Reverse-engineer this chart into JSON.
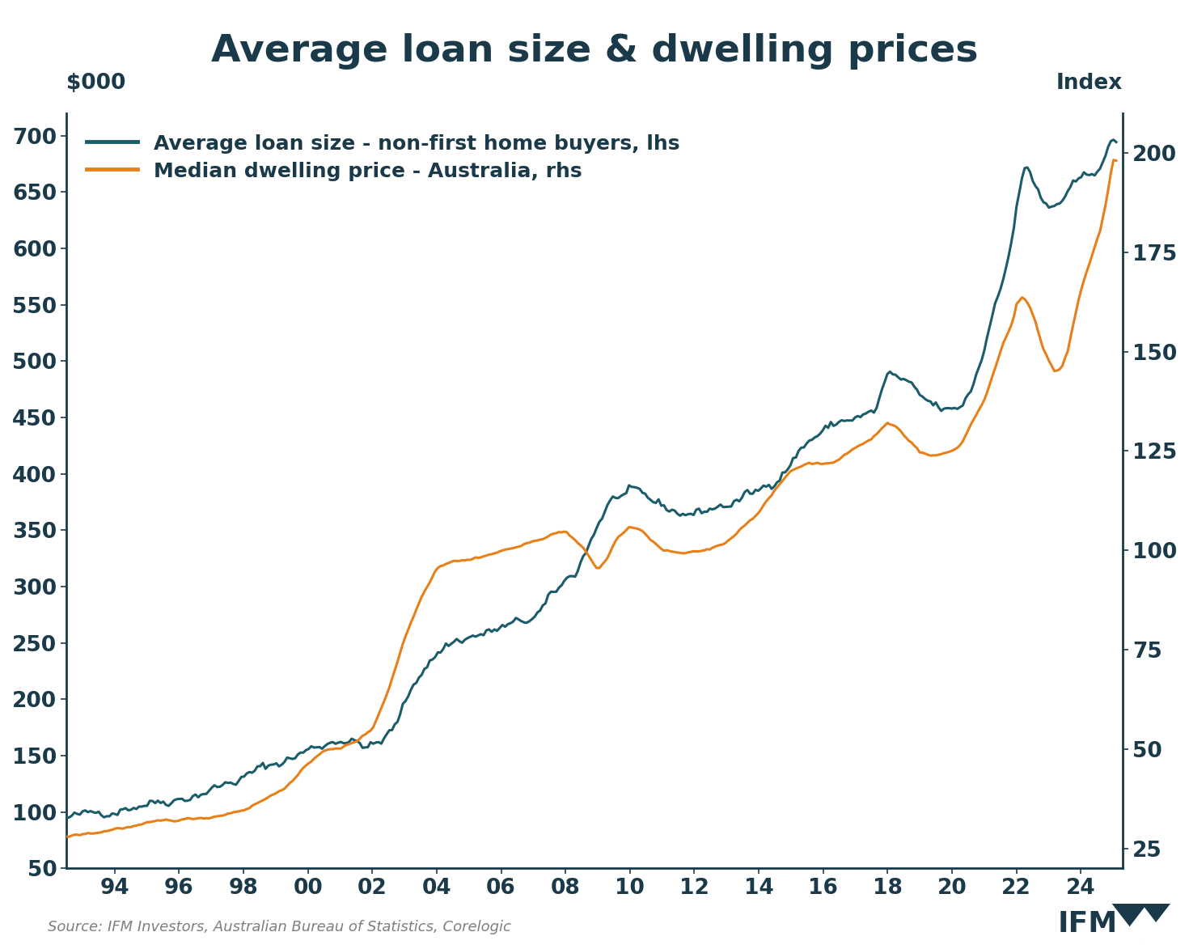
{
  "title": "Average loan size & dwelling prices",
  "ylabel_left": "$000",
  "ylabel_right": "Index",
  "source_text": "Source: IFM Investors, Australian Bureau of Statistics, Corelogic",
  "legend_entries": [
    "Average loan size - non-first home buyers, lhs",
    "Median dwelling price - Australia, rhs"
  ],
  "teal_color": "#1b5c6b",
  "orange_color": "#e8801a",
  "background_color": "#ffffff",
  "ylim_left": [
    50,
    720
  ],
  "ylim_right": [
    20,
    210
  ],
  "yticks_left": [
    50,
    100,
    150,
    200,
    250,
    300,
    350,
    400,
    450,
    500,
    550,
    600,
    650,
    700
  ],
  "yticks_right": [
    25,
    50,
    75,
    100,
    125,
    150,
    175,
    200
  ],
  "xtick_labels": [
    "94",
    "96",
    "98",
    "00",
    "02",
    "04",
    "06",
    "08",
    "10",
    "12",
    "14",
    "16",
    "18",
    "20",
    "22",
    "24"
  ],
  "title_color": "#1a3a4a",
  "tick_color": "#1a3a4a",
  "spine_color": "#1a3a4a",
  "waypoints_loan": [
    [
      1992.5,
      95
    ],
    [
      1993,
      97
    ],
    [
      1993.5,
      100
    ],
    [
      1994,
      102
    ],
    [
      1994.5,
      105
    ],
    [
      1995,
      108
    ],
    [
      1995.5,
      110
    ],
    [
      1996,
      112
    ],
    [
      1996.5,
      115
    ],
    [
      1997,
      120
    ],
    [
      1997.5,
      125
    ],
    [
      1998,
      130
    ],
    [
      1998.5,
      138
    ],
    [
      1999,
      143
    ],
    [
      1999.5,
      148
    ],
    [
      2000,
      155
    ],
    [
      2000.5,
      160
    ],
    [
      2001,
      165
    ],
    [
      2001.3,
      163
    ],
    [
      2001.6,
      160
    ],
    [
      2002,
      158
    ],
    [
      2002.3,
      162
    ],
    [
      2002.7,
      175
    ],
    [
      2003,
      195
    ],
    [
      2003.3,
      215
    ],
    [
      2003.6,
      228
    ],
    [
      2004,
      240
    ],
    [
      2004.3,
      248
    ],
    [
      2004.6,
      252
    ],
    [
      2005,
      255
    ],
    [
      2005.5,
      258
    ],
    [
      2006,
      263
    ],
    [
      2006.5,
      267
    ],
    [
      2007,
      272
    ],
    [
      2007.3,
      280
    ],
    [
      2007.6,
      292
    ],
    [
      2008,
      305
    ],
    [
      2008.3,
      312
    ],
    [
      2008.6,
      330
    ],
    [
      2009,
      355
    ],
    [
      2009.3,
      372
    ],
    [
      2009.6,
      380
    ],
    [
      2010,
      382
    ],
    [
      2010.3,
      381
    ],
    [
      2010.6,
      377
    ],
    [
      2011,
      372
    ],
    [
      2011.3,
      368
    ],
    [
      2011.6,
      365
    ],
    [
      2012,
      365
    ],
    [
      2012.3,
      367
    ],
    [
      2012.6,
      370
    ],
    [
      2013,
      372
    ],
    [
      2013.3,
      375
    ],
    [
      2013.6,
      380
    ],
    [
      2014,
      385
    ],
    [
      2014.3,
      390
    ],
    [
      2014.6,
      398
    ],
    [
      2015,
      410
    ],
    [
      2015.3,
      422
    ],
    [
      2015.6,
      430
    ],
    [
      2016,
      438
    ],
    [
      2016.3,
      443
    ],
    [
      2016.6,
      447
    ],
    [
      2017,
      450
    ],
    [
      2017.3,
      452
    ],
    [
      2017.6,
      454
    ],
    [
      2018,
      488
    ],
    [
      2018.2,
      487
    ],
    [
      2018.5,
      482
    ],
    [
      2018.8,
      475
    ],
    [
      2019,
      468
    ],
    [
      2019.3,
      463
    ],
    [
      2019.6,
      458
    ],
    [
      2020,
      455
    ],
    [
      2020.3,
      460
    ],
    [
      2020.6,
      475
    ],
    [
      2021,
      510
    ],
    [
      2021.3,
      548
    ],
    [
      2021.6,
      578
    ],
    [
      2021.9,
      610
    ],
    [
      2022,
      635
    ],
    [
      2022.1,
      650
    ],
    [
      2022.2,
      668
    ],
    [
      2022.3,
      675
    ],
    [
      2022.4,
      670
    ],
    [
      2022.5,
      662
    ],
    [
      2022.6,
      655
    ],
    [
      2022.7,
      648
    ],
    [
      2022.8,
      640
    ],
    [
      2022.9,
      638
    ],
    [
      2023,
      635
    ],
    [
      2023.2,
      637
    ],
    [
      2023.4,
      642
    ],
    [
      2023.6,
      648
    ],
    [
      2023.8,
      655
    ],
    [
      2024,
      660
    ],
    [
      2024.2,
      663
    ],
    [
      2024.4,
      668
    ],
    [
      2024.6,
      675
    ],
    [
      2024.8,
      685
    ],
    [
      2025.0,
      695
    ]
  ],
  "waypoints_price": [
    [
      1992.5,
      28
    ],
    [
      1993,
      28.5
    ],
    [
      1993.5,
      29
    ],
    [
      1994,
      30
    ],
    [
      1994.5,
      30.5
    ],
    [
      1995,
      31
    ],
    [
      1995.5,
      31.5
    ],
    [
      1996,
      32
    ],
    [
      1996.5,
      32.5
    ],
    [
      1997,
      33
    ],
    [
      1997.5,
      34
    ],
    [
      1998,
      35
    ],
    [
      1998.5,
      37
    ],
    [
      1999,
      39
    ],
    [
      1999.5,
      42
    ],
    [
      2000,
      46
    ],
    [
      2000.5,
      50
    ],
    [
      2001,
      50
    ],
    [
      2001.5,
      52
    ],
    [
      2002,
      55
    ],
    [
      2002.5,
      65
    ],
    [
      2003,
      78
    ],
    [
      2003.5,
      88
    ],
    [
      2004,
      96
    ],
    [
      2004.5,
      98
    ],
    [
      2005,
      98
    ],
    [
      2005.5,
      99
    ],
    [
      2006,
      100
    ],
    [
      2006.5,
      101
    ],
    [
      2007,
      102
    ],
    [
      2007.5,
      104
    ],
    [
      2008,
      105
    ],
    [
      2008.5,
      101
    ],
    [
      2009,
      95
    ],
    [
      2009.3,
      98
    ],
    [
      2009.6,
      103
    ],
    [
      2010,
      106
    ],
    [
      2010.3,
      105
    ],
    [
      2010.6,
      103
    ],
    [
      2011,
      100
    ],
    [
      2011.5,
      99
    ],
    [
      2012,
      99
    ],
    [
      2012.5,
      100
    ],
    [
      2013,
      102
    ],
    [
      2013.5,
      106
    ],
    [
      2014,
      110
    ],
    [
      2014.5,
      115
    ],
    [
      2015,
      120
    ],
    [
      2015.5,
      122
    ],
    [
      2016,
      122
    ],
    [
      2016.5,
      123
    ],
    [
      2017,
      126
    ],
    [
      2017.5,
      128
    ],
    [
      2018,
      132
    ],
    [
      2018.3,
      131
    ],
    [
      2018.5,
      129
    ],
    [
      2018.8,
      127
    ],
    [
      2019,
      125
    ],
    [
      2019.3,
      124
    ],
    [
      2019.6,
      124
    ],
    [
      2020,
      125
    ],
    [
      2020.3,
      127
    ],
    [
      2020.6,
      132
    ],
    [
      2021,
      138
    ],
    [
      2021.3,
      145
    ],
    [
      2021.6,
      152
    ],
    [
      2021.9,
      158
    ],
    [
      2022,
      162
    ],
    [
      2022.2,
      164
    ],
    [
      2022.4,
      162
    ],
    [
      2022.6,
      158
    ],
    [
      2022.8,
      152
    ],
    [
      2023,
      148
    ],
    [
      2023.2,
      145
    ],
    [
      2023.4,
      146
    ],
    [
      2023.6,
      150
    ],
    [
      2023.8,
      158
    ],
    [
      2024,
      165
    ],
    [
      2024.2,
      170
    ],
    [
      2024.4,
      175
    ],
    [
      2024.6,
      180
    ],
    [
      2024.8,
      188
    ],
    [
      2025.0,
      198
    ]
  ]
}
